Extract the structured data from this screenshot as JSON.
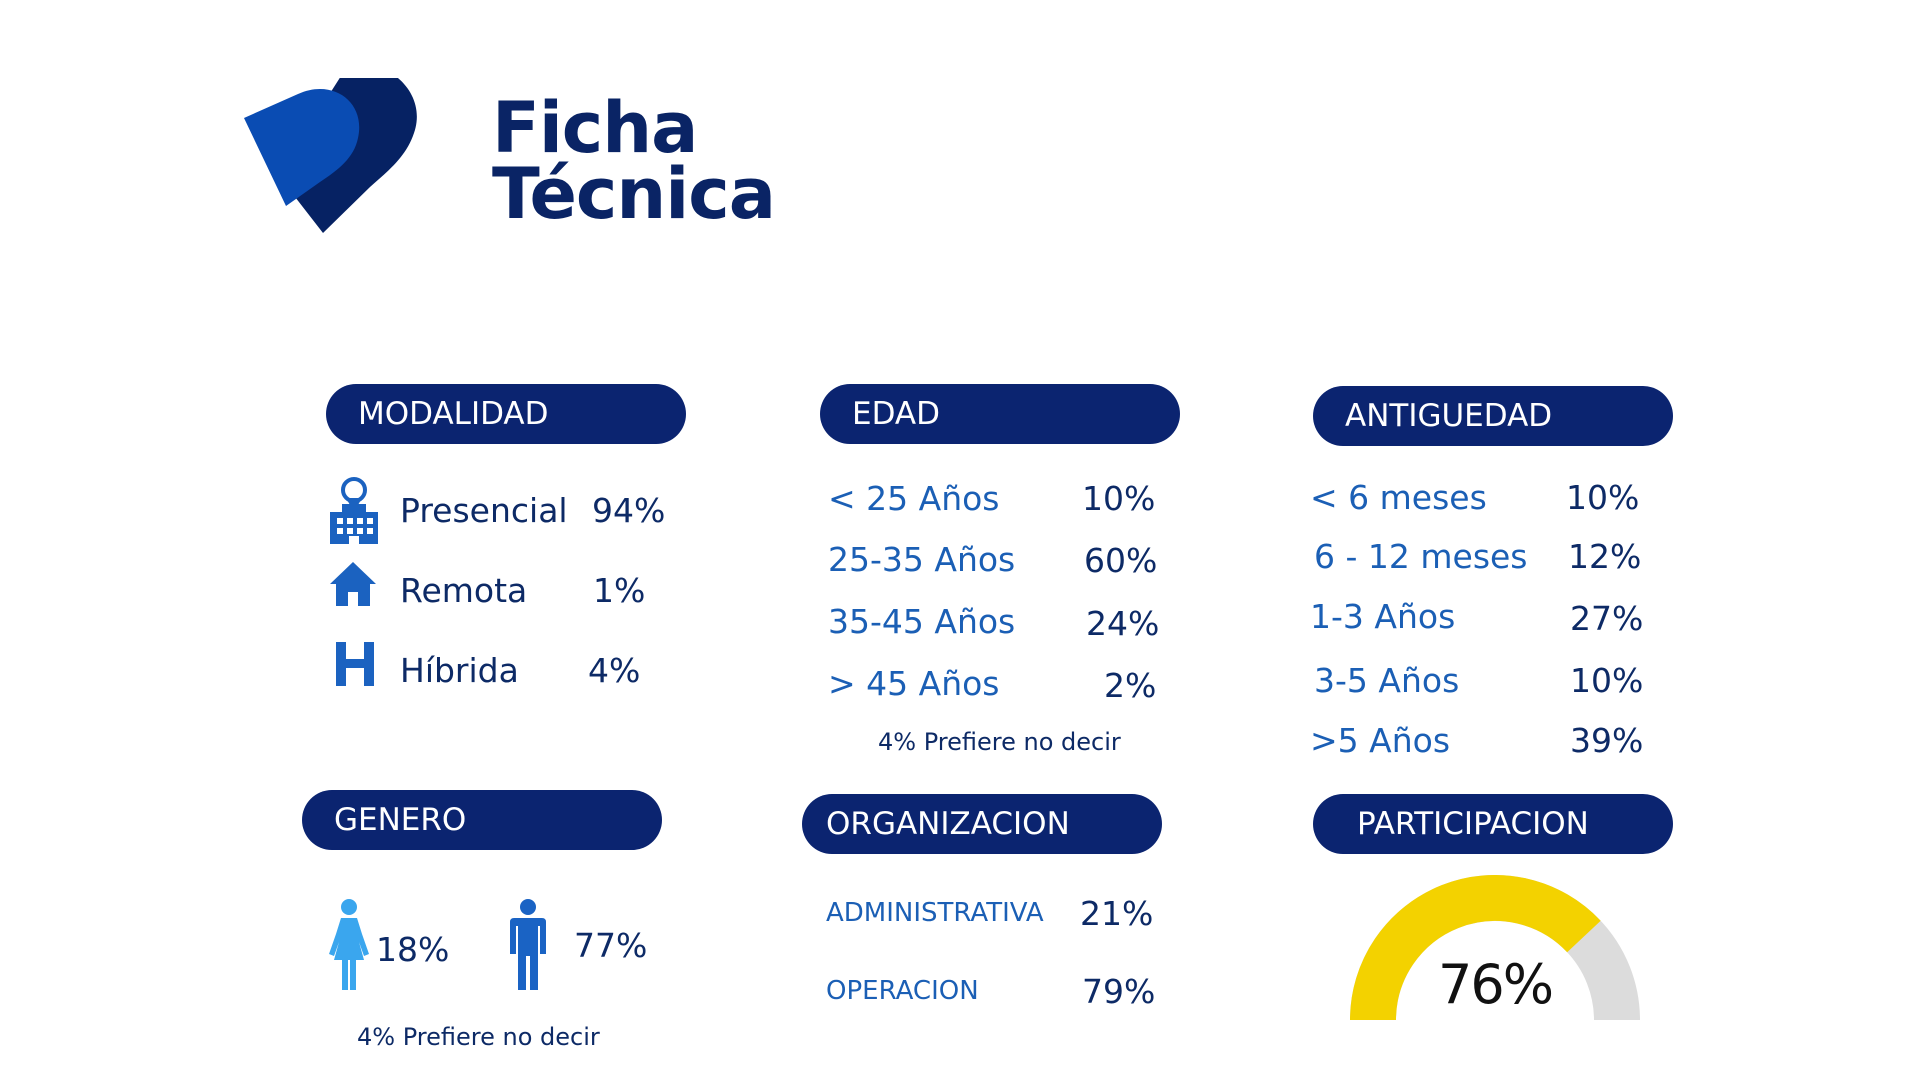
{
  "title": {
    "line1": "Ficha",
    "line2": "Técnica"
  },
  "modalidad": {
    "header": "MODALIDAD",
    "items": [
      {
        "label": "Presencial",
        "value": "94%",
        "icon": "office-building-location-icon"
      },
      {
        "label": "Remota",
        "value": "1%",
        "icon": "home-icon"
      },
      {
        "label": "Híbrida",
        "value": "4%",
        "icon": "hybrid-h-icon"
      }
    ]
  },
  "edad": {
    "header": "EDAD",
    "items": [
      {
        "label": "< 25 Años",
        "value": "10%"
      },
      {
        "label": "25-35 Años",
        "value": "60%"
      },
      {
        "label": "35-45 Años",
        "value": "24%"
      },
      {
        "label": "> 45 Años",
        "value": "2%"
      }
    ],
    "note": "4% Prefiere no decir"
  },
  "antiguedad": {
    "header": "ANTIGUEDAD",
    "items": [
      {
        "label": "< 6 meses",
        "value": "10%"
      },
      {
        "label": "6 - 12 meses",
        "value": "12%"
      },
      {
        "label": "1-3 Años",
        "value": "27%"
      },
      {
        "label": "3-5  Años",
        "value": "10%"
      },
      {
        "label": ">5   Años",
        "value": "39%"
      }
    ]
  },
  "genero": {
    "header": "GENERO",
    "female_value": "18%",
    "male_value": "77%",
    "note": "4% Prefiere no decir"
  },
  "organizacion": {
    "header": "ORGANIZACION",
    "items": [
      {
        "label": "ADMINISTRATIVA",
        "value": "21%"
      },
      {
        "label": "OPERACION",
        "value": "79%"
      }
    ]
  },
  "participacion": {
    "header": "PARTICIPACION",
    "value_text": "76%",
    "fraction": 0.76,
    "fill_color": "#f3d200",
    "track_color": "#dcdcdc"
  },
  "colors": {
    "navy": "#0b2470",
    "blue_text": "#1b5fb5",
    "dark_text": "#0d2a66",
    "logo_light": "#0a4cb3",
    "logo_dark": "#062263",
    "female_icon": "#3aa6ee",
    "male_icon": "#1a63c4"
  }
}
